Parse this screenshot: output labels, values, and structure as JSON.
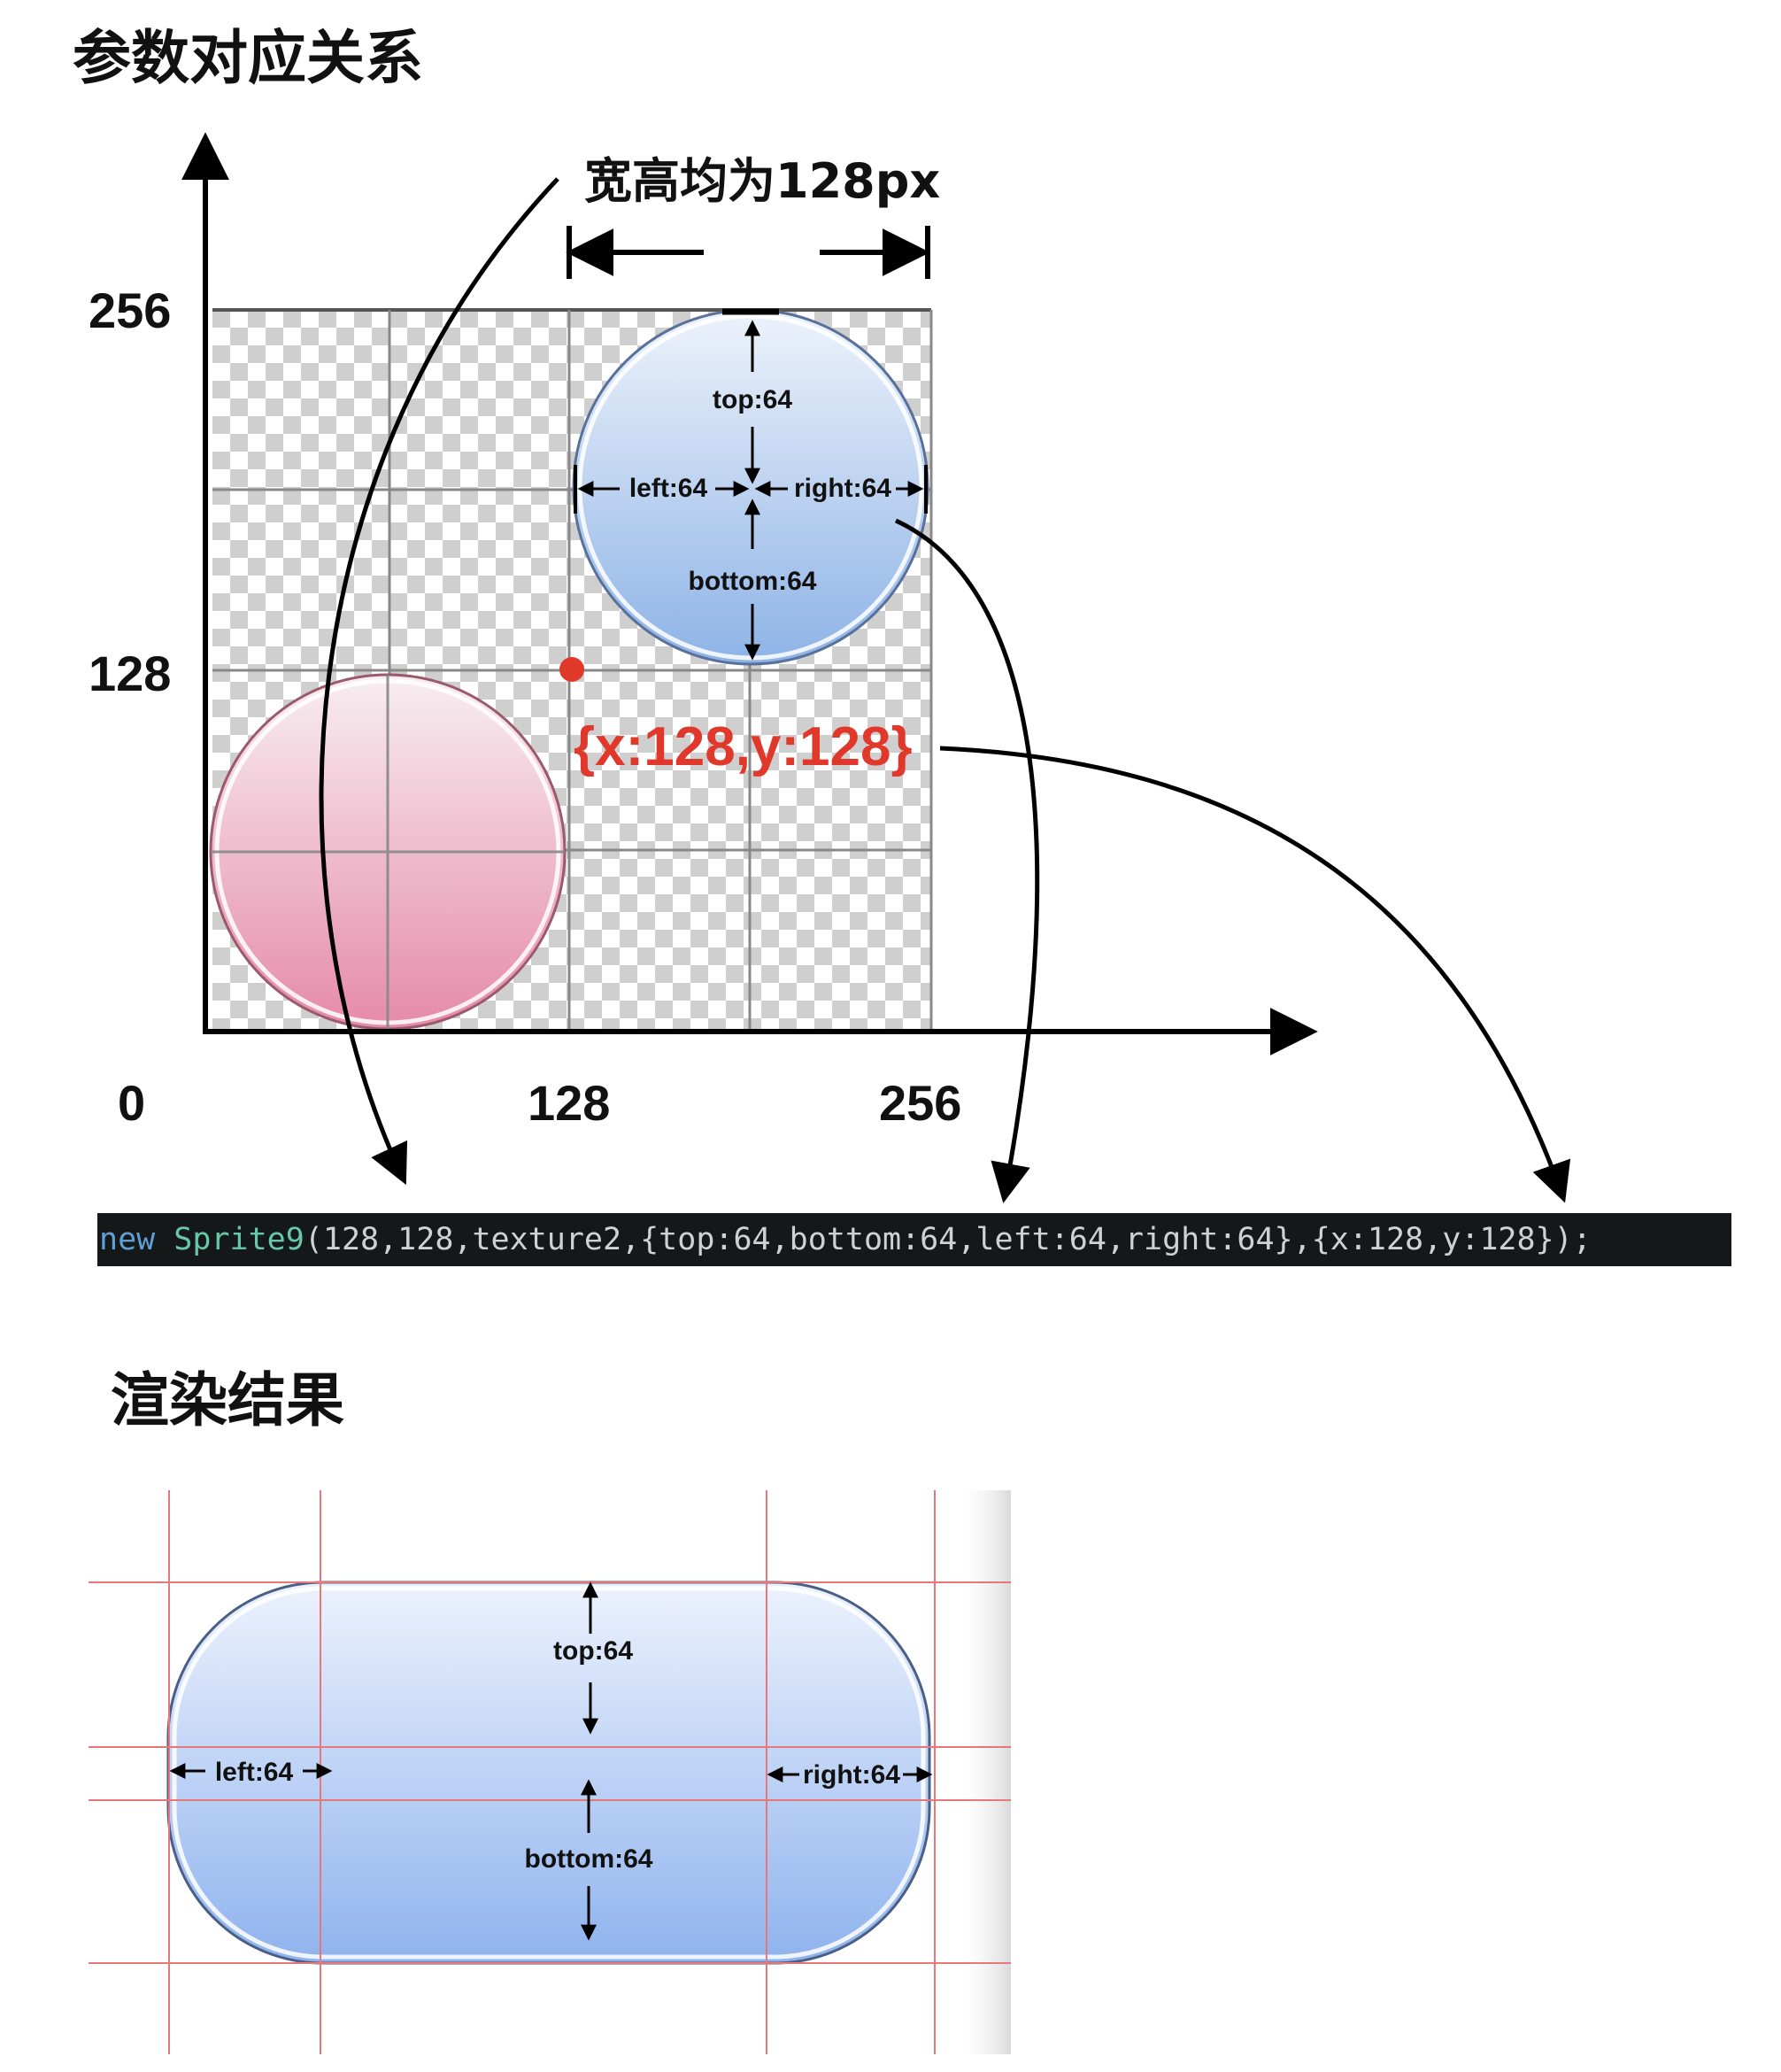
{
  "headings": {
    "params": "参数对应关系",
    "result": "渲染结果"
  },
  "axis": {
    "y_256": "256",
    "y_128": "128",
    "origin": "0",
    "x_128": "128",
    "x_256": "256"
  },
  "size_label": "宽高均为128px",
  "anchor_label": "{x:128,y:128}",
  "circle_labels": {
    "top": "top:64",
    "left": "left:64",
    "right": "right:64",
    "bottom": "bottom:64"
  },
  "result_labels": {
    "top": "top:64",
    "left": "left:64",
    "right": "right:64",
    "bottom": "bottom:64"
  },
  "code": {
    "keyword": "new",
    "class": "Sprite9",
    "args": "(128,128,texture2,{top:64,bottom:64,left:64,right:64},{x:128,y:128});"
  },
  "colors": {
    "anchor": "#e0392b",
    "keyword": "#5f9fd6",
    "class": "#67c9a8",
    "args": "#cfd2d4",
    "code_bg": "#151819",
    "guide": "#e8777a",
    "grid": "#888888"
  }
}
